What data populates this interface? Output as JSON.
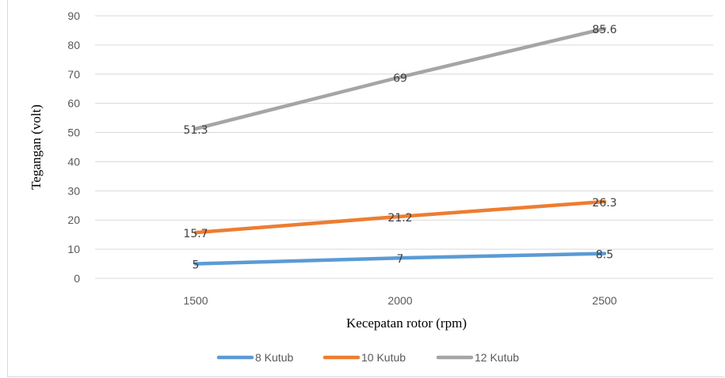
{
  "chart_data": {
    "type": "line",
    "title": "",
    "xlabel": "Kecepatan rotor (rpm)",
    "ylabel": "Tegangan (volt)",
    "categories": [
      "1500",
      "2000",
      "2500"
    ],
    "yticks": [
      "0",
      "10",
      "20",
      "30",
      "40",
      "50",
      "60",
      "70",
      "80",
      "90"
    ],
    "ylim": [
      0,
      90
    ],
    "grid": true,
    "legend_position": "bottom",
    "series": [
      {
        "name": "8 Kutub",
        "values": [
          5,
          7,
          8.5
        ],
        "labels": [
          "5",
          "7",
          "8.5"
        ],
        "color": "#5b9bd5"
      },
      {
        "name": "10 Kutub",
        "values": [
          15.7,
          21.2,
          26.3
        ],
        "labels": [
          "15.7",
          "21.2",
          "26.3"
        ],
        "color": "#ed7d31"
      },
      {
        "name": "12 Kutub",
        "values": [
          51.3,
          69,
          85.6
        ],
        "labels": [
          "51.3",
          "69",
          "85.6"
        ],
        "color": "#a5a5a5"
      }
    ]
  }
}
